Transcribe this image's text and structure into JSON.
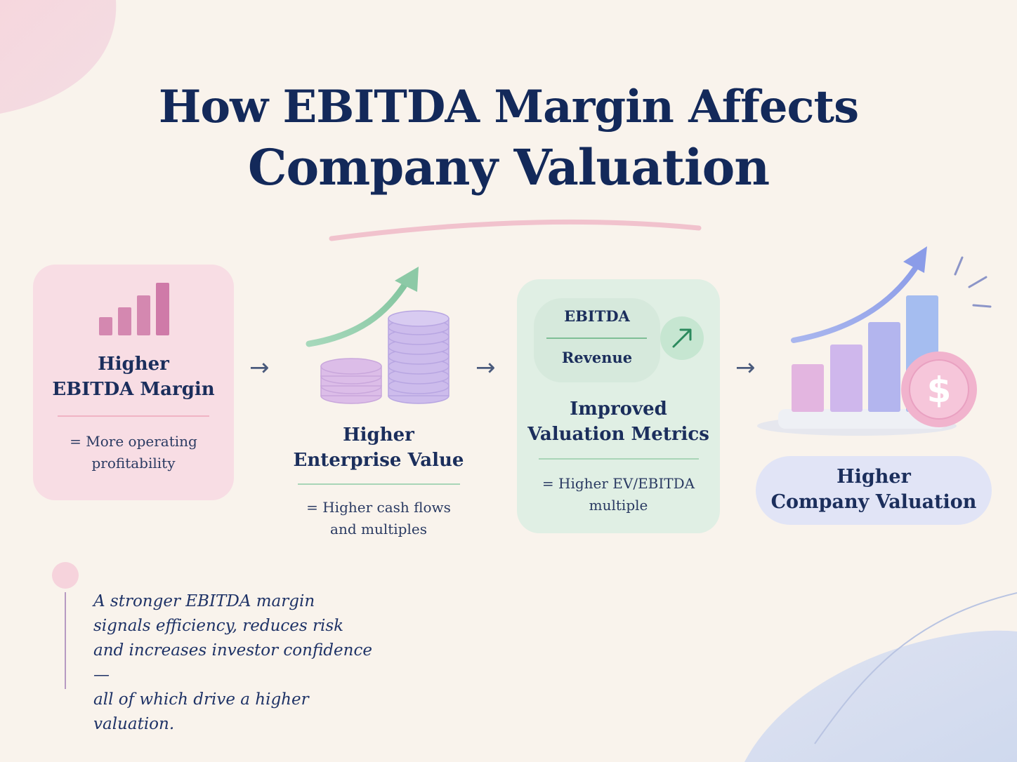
{
  "title": {
    "line1": "How EBITDA Margin Affects",
    "line2": "Company Valuation"
  },
  "steps": [
    {
      "heading_line1": "Higher",
      "heading_line2": "EBITDA Margin",
      "desc_line1": "= More operating",
      "desc_line2": "profitability",
      "icon": "bar-chart-icon"
    },
    {
      "heading_line1": "Higher",
      "heading_line2": "Enterprise Value",
      "desc_line1": "= Higher cash flows",
      "desc_line2": "and multiples",
      "icon": "coin-stack-icon"
    },
    {
      "formula_numerator": "EBITDA",
      "formula_denominator": "Revenue",
      "heading_line1": "Improved",
      "heading_line2": "Valuation Metrics",
      "desc_line1": "= Higher EV/EBITDA",
      "desc_line2": "multiple",
      "icon": "trend-up-arrow-icon"
    },
    {
      "heading_line1": "Higher",
      "heading_line2": "Company Valuation",
      "icon": "growth-chart-dollar-icon"
    }
  ],
  "flow_arrow": "→",
  "quote": {
    "line1": "A stronger EBITDA margin",
    "line2": "signals efficiency, reduces risk",
    "line3": "and increases investor confidence —",
    "line4": "all of which drive a higher valuation."
  },
  "colors": {
    "navy": "#13295a",
    "pink": "#f8dde4",
    "mint": "#e0efe4",
    "lavender": "#e1e4f6",
    "background": "#f9f3ec"
  }
}
